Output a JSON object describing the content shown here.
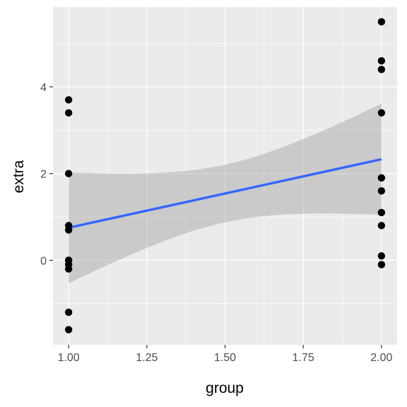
{
  "chart_data": {
    "type": "scatter",
    "title": "",
    "xlabel": "group",
    "ylabel": "extra",
    "xlim": [
      0.95,
      2.05
    ],
    "ylim": [
      -1.95,
      5.84
    ],
    "x_ticks": [
      1.0,
      1.25,
      1.5,
      1.75,
      2.0
    ],
    "x_tick_labels": [
      "1.00",
      "1.25",
      "1.50",
      "1.75",
      "2.00"
    ],
    "y_ticks": [
      0,
      2,
      4
    ],
    "y_tick_labels": [
      "0",
      "2",
      "4"
    ],
    "grid": true,
    "legend": "none",
    "points": [
      {
        "x": 1,
        "y": 0.7
      },
      {
        "x": 1,
        "y": -1.6
      },
      {
        "x": 1,
        "y": -0.2
      },
      {
        "x": 1,
        "y": -1.2
      },
      {
        "x": 1,
        "y": -0.1
      },
      {
        "x": 1,
        "y": 3.4
      },
      {
        "x": 1,
        "y": 3.7
      },
      {
        "x": 1,
        "y": 0.8
      },
      {
        "x": 1,
        "y": 0.0
      },
      {
        "x": 1,
        "y": 2.0
      },
      {
        "x": 2,
        "y": 1.9
      },
      {
        "x": 2,
        "y": 0.8
      },
      {
        "x": 2,
        "y": 1.1
      },
      {
        "x": 2,
        "y": 0.1
      },
      {
        "x": 2,
        "y": -0.1
      },
      {
        "x": 2,
        "y": 4.4
      },
      {
        "x": 2,
        "y": 5.5
      },
      {
        "x": 2,
        "y": 1.6
      },
      {
        "x": 2,
        "y": 4.6
      },
      {
        "x": 2,
        "y": 3.4
      }
    ],
    "smooth": {
      "method": "linear",
      "x": [
        1,
        2
      ],
      "y": [
        0.75,
        2.33
      ],
      "ci_lower": [
        -0.52,
        0.92
      ],
      "ci_upper": [
        2.04,
        3.72
      ]
    },
    "colors": {
      "panel": "#ebebeb",
      "grid": "#ffffff",
      "points": "#000000",
      "line": "#3366ff",
      "ribbon": "#999999"
    }
  }
}
